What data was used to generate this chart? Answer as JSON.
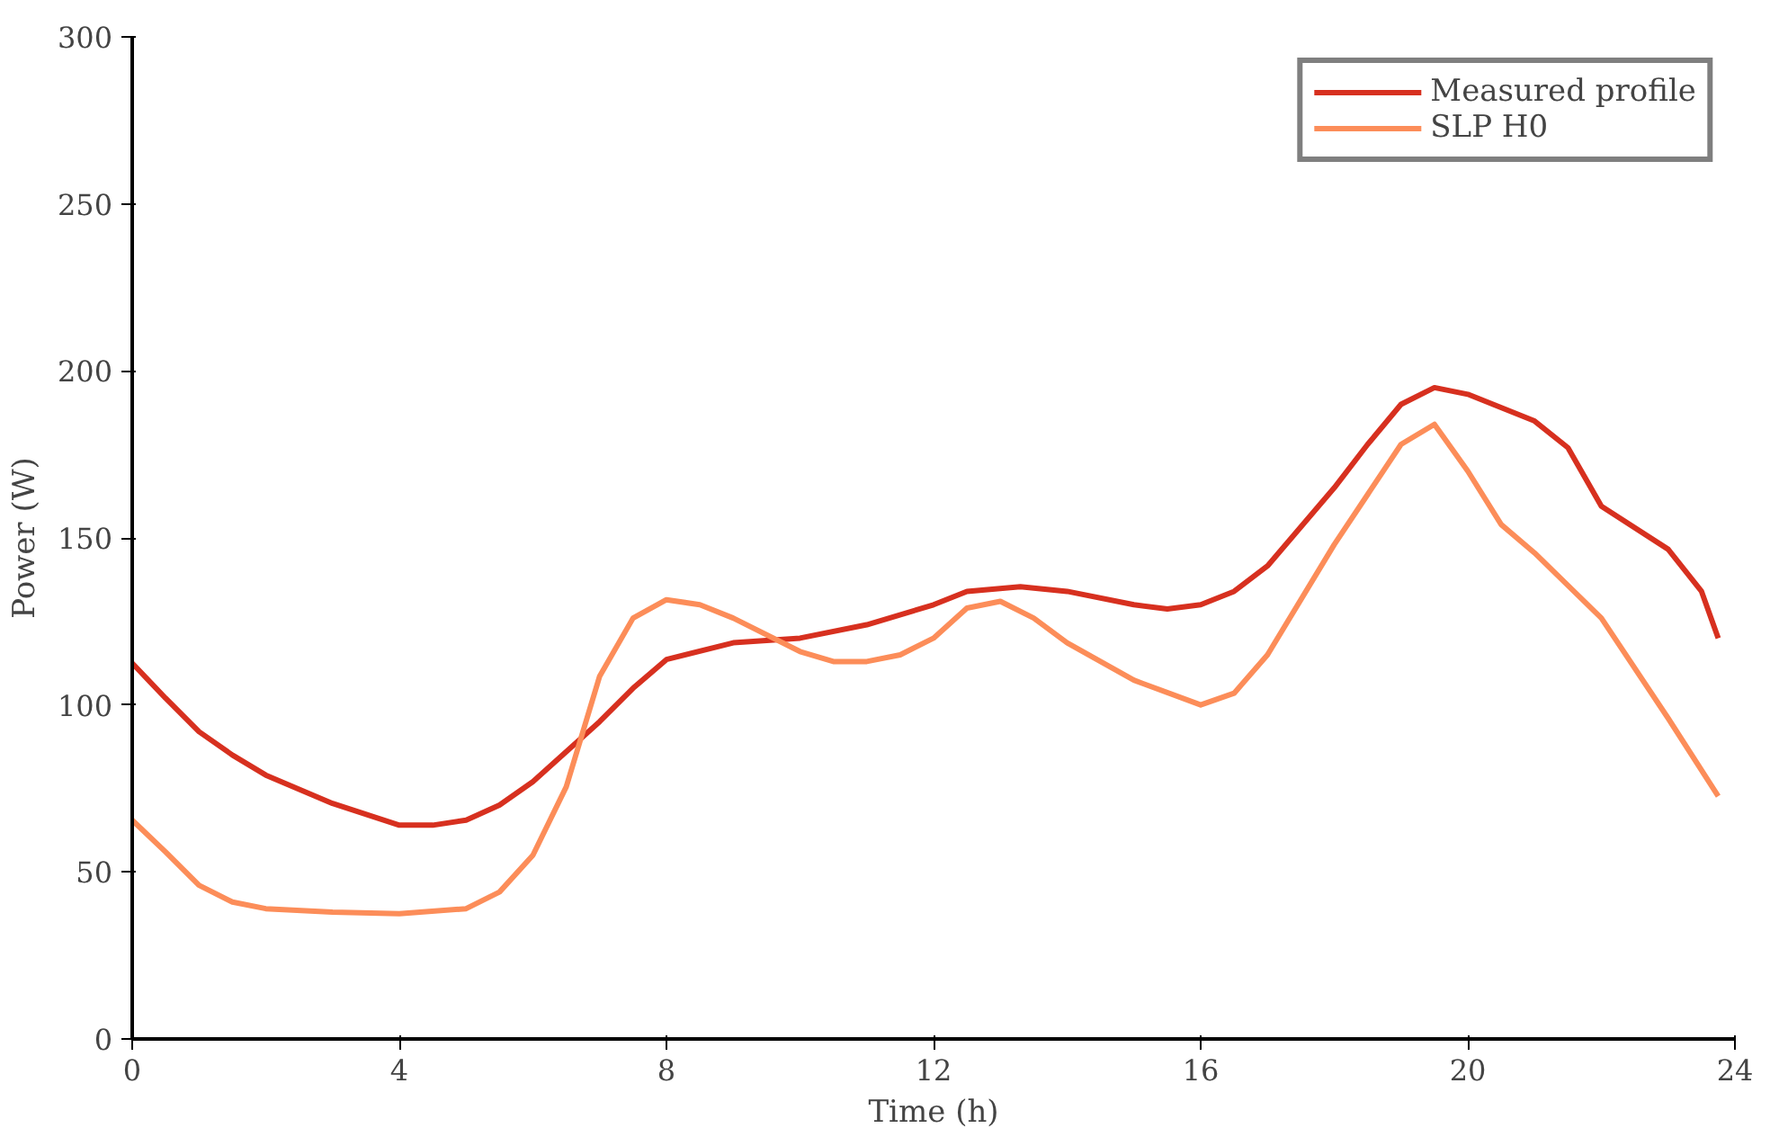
{
  "chart_data": {
    "type": "line",
    "xlabel": "Time (h)",
    "ylabel": "Power (W)",
    "xlim": [
      0,
      24
    ],
    "xticks": [
      0,
      4,
      8,
      12,
      16,
      20,
      24
    ],
    "ylim": [
      0,
      300
    ],
    "yticks": [
      0,
      50,
      100,
      150,
      200,
      250,
      300
    ],
    "grid": false,
    "legend": "top right",
    "marker": "none",
    "line_style": "solid",
    "series": [
      {
        "name": "Measured profile",
        "color": "#d7301f",
        "x": [
          0,
          0.5,
          1,
          1.5,
          2,
          3,
          4,
          4.5,
          5,
          5.5,
          6,
          7,
          7.5,
          8,
          9,
          10,
          11,
          12,
          12.5,
          13.3,
          14,
          15,
          15.5,
          16,
          16.5,
          17,
          18,
          18.5,
          19,
          19.5,
          20,
          21,
          21.5,
          22,
          23,
          23.5,
          23.75
        ],
        "values": [
          112.5,
          102,
          92,
          85,
          79,
          70.5,
          64,
          64,
          65.5,
          70,
          77,
          95,
          105,
          113.6,
          118.6,
          120,
          124,
          130,
          134,
          135.4,
          134,
          130,
          128.7,
          130,
          134,
          141.6,
          165,
          178,
          190,
          195,
          193,
          185,
          177,
          159.5,
          146.6,
          134,
          120
        ]
      },
      {
        "name": "SLP H0",
        "color": "#fc8d59",
        "x": [
          0,
          0.5,
          1,
          1.5,
          2,
          3,
          4,
          5,
          5.5,
          6,
          6.5,
          7,
          7.5,
          8,
          8.5,
          9,
          10,
          10.5,
          11,
          11.5,
          12,
          12.5,
          13,
          13.5,
          14,
          15,
          16,
          16.5,
          17,
          18,
          18.5,
          19,
          19.5,
          20,
          20.5,
          21,
          22,
          23,
          23.75
        ],
        "values": [
          65.5,
          56,
          46,
          41,
          39,
          38,
          37.5,
          39,
          44,
          55,
          75.5,
          108.6,
          126,
          131.5,
          130,
          126,
          116,
          113,
          113,
          115,
          120,
          129,
          131,
          126,
          118.6,
          107.4,
          100,
          103.5,
          115,
          148,
          163,
          178,
          184,
          170,
          154,
          145.5,
          126,
          96,
          72.7
        ]
      }
    ]
  }
}
